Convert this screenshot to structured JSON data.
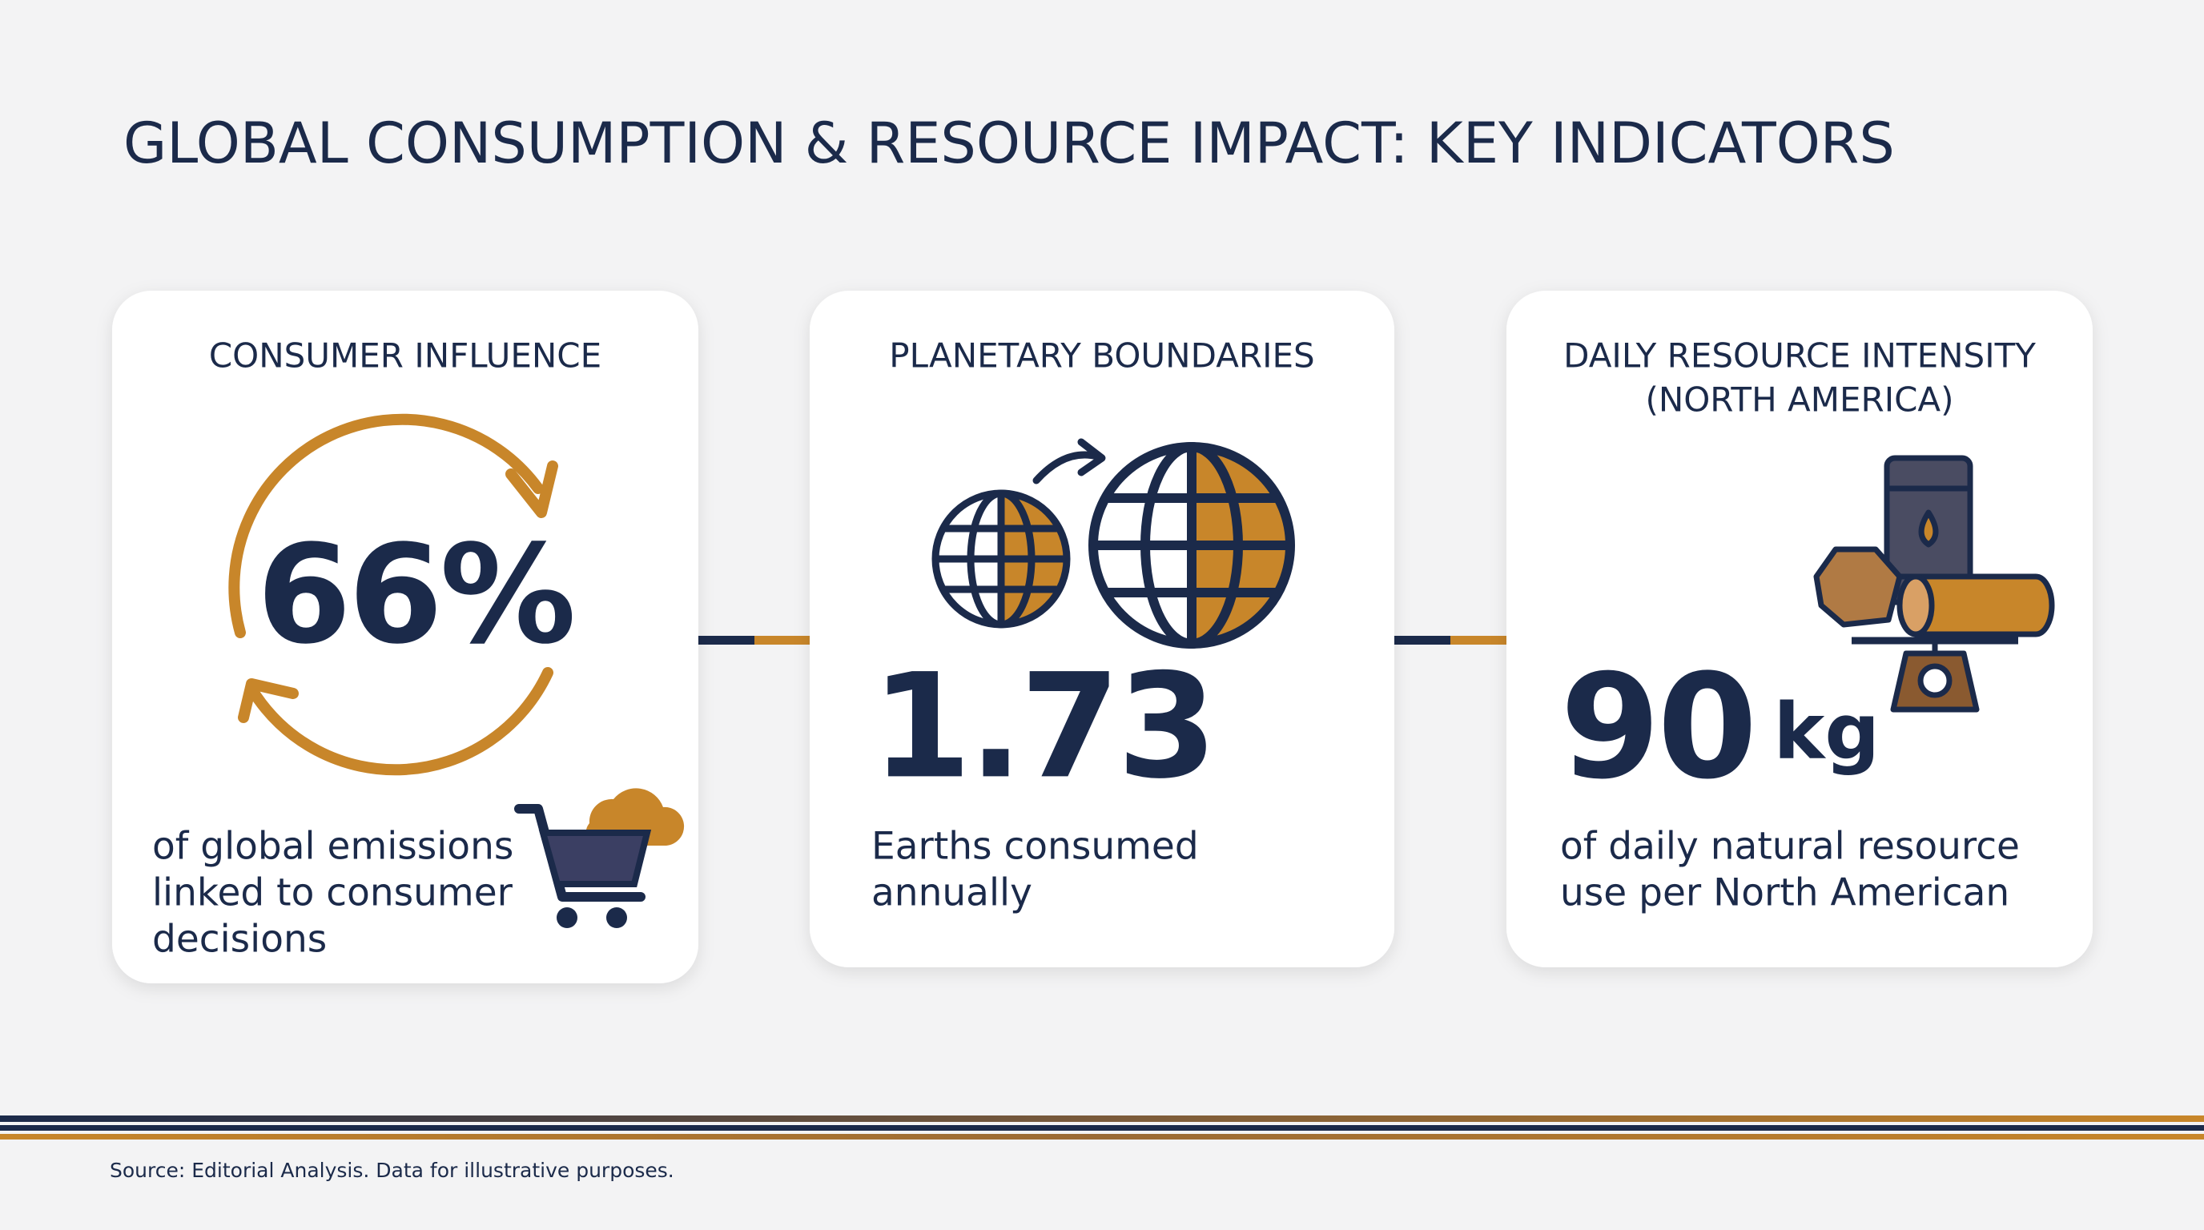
{
  "header": {
    "title": "GLOBAL CONSUMPTION & RESOURCE IMPACT: KEY INDICATORS"
  },
  "cards": [
    {
      "heading": [
        "CONSUMER INFLUENCE"
      ],
      "value": "66%",
      "description": [
        "of global emissions",
        "linked to consumer",
        "decisions"
      ]
    },
    {
      "heading": [
        "PLANETARY BOUNDARIES"
      ],
      "value": "1.73",
      "description": [
        "Earths consumed",
        "annually"
      ]
    },
    {
      "heading": [
        "DAILY RESOURCE INTENSITY",
        "(NORTH AMERICA)"
      ],
      "value": "90",
      "unit": "kg",
      "description": [
        "of daily natural resource",
        "use per North American"
      ]
    }
  ],
  "footer": {
    "source": "Source: Editorial Analysis. Data for illustrative purposes."
  }
}
